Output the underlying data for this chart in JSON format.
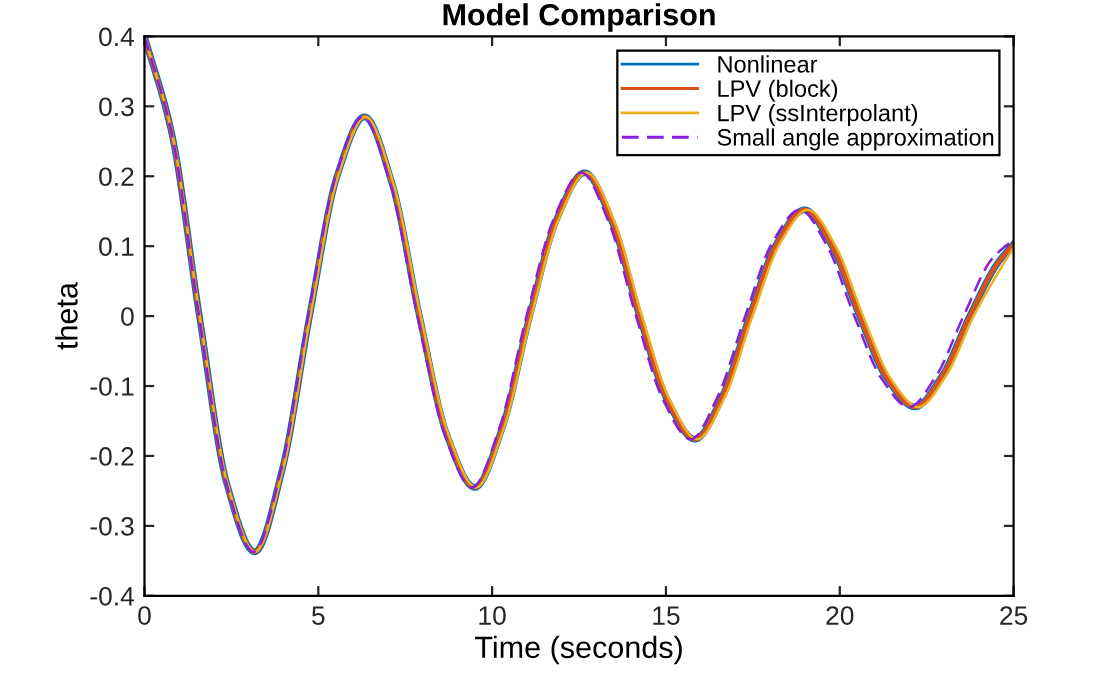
{
  "chart_data": {
    "type": "line",
    "title": "Model Comparison",
    "xlabel": "Time (seconds)",
    "ylabel": "theta",
    "xlim": [
      0,
      25
    ],
    "ylim": [
      -0.4,
      0.4
    ],
    "xticks": [
      0,
      5,
      10,
      15,
      20,
      25
    ],
    "yticks": [
      -0.4,
      -0.3,
      -0.2,
      -0.1,
      0,
      0.1,
      0.2,
      0.3,
      0.4
    ],
    "grid": false,
    "legend": "top right",
    "marker": "none",
    "series": [
      {
        "name": "Nonlinear",
        "color": "#0072bd",
        "line_style": "solid",
        "x": [
          0,
          0.79,
          1.58,
          2.37,
          3.17,
          3.96,
          4.75,
          5.54,
          6.33,
          7.12,
          7.91,
          8.7,
          9.5,
          10.29,
          11.08,
          11.87,
          12.66,
          13.45,
          14.24,
          15.04,
          15.83,
          16.62,
          17.41,
          18.2,
          18.99,
          19.78,
          20.57,
          21.37,
          22.16,
          22.95,
          23.74,
          24.53,
          25
        ],
        "values": [
          0.4,
          0.26,
          0,
          -0.24,
          -0.337,
          -0.22,
          0,
          0.2,
          0.285,
          0.19,
          0,
          -0.17,
          -0.245,
          -0.16,
          0,
          0.14,
          0.205,
          0.135,
          0,
          -0.12,
          -0.176,
          -0.115,
          0,
          0.105,
          0.152,
          0.1,
          0,
          -0.09,
          -0.13,
          -0.085,
          0,
          0.075,
          0.103
        ]
      },
      {
        "name": "LPV (block)",
        "color": "#d95319",
        "line_style": "solid",
        "x": [
          0,
          0.79,
          1.58,
          2.37,
          3.17,
          3.96,
          4.75,
          5.54,
          6.33,
          7.12,
          7.91,
          8.7,
          9.5,
          10.29,
          11.08,
          11.87,
          12.66,
          13.45,
          14.24,
          15.04,
          15.83,
          16.62,
          17.41,
          18.2,
          18.99,
          19.78,
          20.57,
          21.37,
          22.16,
          22.95,
          23.74,
          24.53,
          25
        ],
        "values": [
          0.4,
          0.26,
          0,
          -0.24,
          -0.337,
          -0.22,
          0,
          0.2,
          0.285,
          0.19,
          0,
          -0.17,
          -0.245,
          -0.16,
          0,
          0.14,
          0.205,
          0.135,
          0,
          -0.12,
          -0.176,
          -0.115,
          0,
          0.105,
          0.152,
          0.1,
          0,
          -0.09,
          -0.13,
          -0.085,
          0,
          0.075,
          0.103
        ]
      },
      {
        "name": "LPV (ssInterpolant)",
        "color": "#edb120",
        "line_style": "solid",
        "x": [
          0,
          0.8,
          1.59,
          2.39,
          3.18,
          3.98,
          4.77,
          5.57,
          6.36,
          7.16,
          7.95,
          8.75,
          9.54,
          10.34,
          11.13,
          11.93,
          12.72,
          13.52,
          14.31,
          15.11,
          15.9,
          16.7,
          17.49,
          18.29,
          19.08,
          19.88,
          20.67,
          21.47,
          22.26,
          23.06,
          23.85,
          24.65,
          25
        ],
        "values": [
          0.4,
          0.26,
          0,
          -0.24,
          -0.337,
          -0.22,
          0,
          0.2,
          0.285,
          0.19,
          0,
          -0.17,
          -0.245,
          -0.16,
          0,
          0.14,
          0.205,
          0.135,
          0,
          -0.12,
          -0.176,
          -0.115,
          0,
          0.105,
          0.152,
          0.1,
          0,
          -0.09,
          -0.13,
          -0.085,
          0,
          0.07,
          0.098
        ]
      },
      {
        "name": "Small angle approximation",
        "color": "#8a1ee0",
        "line_style": "dashed",
        "x": [
          0,
          0.79,
          1.57,
          2.36,
          3.14,
          3.93,
          4.71,
          5.5,
          6.28,
          7.07,
          7.85,
          8.64,
          9.42,
          10.21,
          10.99,
          11.78,
          12.57,
          13.35,
          14.14,
          14.92,
          15.71,
          16.49,
          17.28,
          18.06,
          18.85,
          19.64,
          20.42,
          21.21,
          21.99,
          22.78,
          23.56,
          24.35,
          25
        ],
        "values": [
          0.4,
          0.26,
          0,
          -0.24,
          -0.337,
          -0.22,
          0,
          0.2,
          0.285,
          0.19,
          0,
          -0.17,
          -0.245,
          -0.16,
          0,
          0.14,
          0.205,
          0.135,
          0,
          -0.12,
          -0.176,
          -0.115,
          0,
          0.105,
          0.152,
          0.1,
          0,
          -0.09,
          -0.13,
          -0.085,
          0,
          0.08,
          0.11
        ]
      }
    ]
  }
}
